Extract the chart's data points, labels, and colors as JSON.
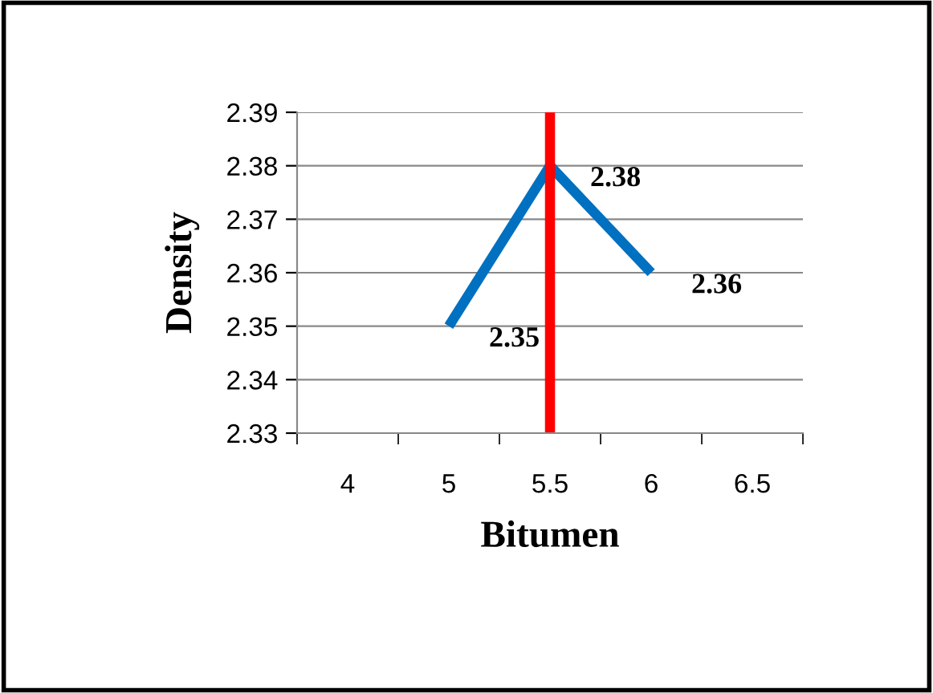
{
  "chart_data": {
    "type": "line",
    "xlabel": "Bitumen",
    "ylabel": "Density",
    "categories": [
      "4",
      "5",
      "5.5",
      "6",
      "6.5"
    ],
    "series": [
      {
        "color": "#0070c0",
        "values": [
          null,
          2.35,
          2.38,
          2.36,
          null
        ]
      }
    ],
    "ylim": [
      2.33,
      2.39
    ],
    "yticks": [
      2.33,
      2.34,
      2.35,
      2.36,
      2.37,
      2.38,
      2.39
    ],
    "grid": "y",
    "legend": false,
    "data_labels": true,
    "marker": "none",
    "line_style": "solid",
    "ref_lines": [
      {
        "axis": "x",
        "value": "5.5",
        "color": "#ff0000"
      }
    ]
  }
}
